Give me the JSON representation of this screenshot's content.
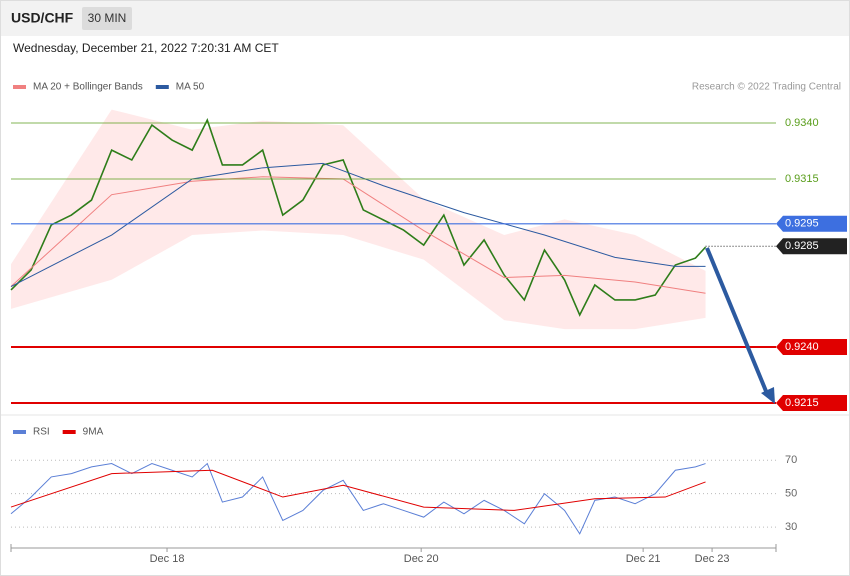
{
  "header": {
    "symbol": "USD/CHF",
    "interval": "30 MIN",
    "date": "Wednesday, December 21, 2022 7:20:31 AM CET",
    "credit": "Research © 2022 Trading Central"
  },
  "chart_data": [
    {
      "type": "line",
      "xlim": [
        0,
        152
      ],
      "xticks": [
        {
          "value": 31,
          "label": "Dec 18"
        },
        {
          "value": 81.5,
          "label": "Dec 20"
        },
        {
          "value": 125.6,
          "label": "Dec 21"
        },
        {
          "value": 139.3,
          "label": "Dec 23"
        }
      ],
      "ylim": [
        0.921,
        0.9368
      ],
      "levels": [
        {
          "value": 0.934,
          "label": "0.9340",
          "color": "#5a9e1c",
          "style": "thin"
        },
        {
          "value": 0.9315,
          "label": "0.9315",
          "color": "#5a9e1c",
          "style": "thin"
        },
        {
          "value": 0.9295,
          "label": "0.9295",
          "color": "#3d6fe0",
          "style": "tag"
        },
        {
          "value": 0.9285,
          "label": "0.9285",
          "color": "#222222",
          "style": "current"
        },
        {
          "value": 0.924,
          "label": "0.9240",
          "color": "#e00000",
          "style": "tag"
        },
        {
          "value": 0.9215,
          "label": "0.9215",
          "color": "#e00000",
          "style": "tag"
        }
      ],
      "series": [
        {
          "color": "#2e7d1a",
          "x": [
            0,
            4,
            8,
            12,
            16,
            20,
            24,
            28,
            32,
            36,
            39,
            42,
            46,
            50,
            54,
            58,
            62,
            66,
            70,
            74,
            78,
            82,
            86,
            90,
            94,
            98,
            102,
            106,
            110,
            113,
            116,
            120,
            124,
            128,
            132,
            136,
            138
          ],
          "values": [
            0.92655,
            0.92744,
            0.92945,
            0.92989,
            0.93056,
            0.93279,
            0.93235,
            0.93391,
            0.93324,
            0.93279,
            0.93413,
            0.93213,
            0.93213,
            0.93279,
            0.92989,
            0.93056,
            0.93213,
            0.93235,
            0.93012,
            0.92967,
            0.92922,
            0.92855,
            0.92989,
            0.92766,
            0.92878,
            0.92721,
            0.9261,
            0.92833,
            0.92699,
            0.92543,
            0.92677,
            0.9261,
            0.9261,
            0.92632,
            0.92766,
            0.92797,
            0.92846
          ]
        },
        {
          "name": "MA 20 + Bollinger Bands",
          "color": "#f08080",
          "x": [
            0,
            20,
            36,
            50,
            66,
            82,
            98,
            110,
            124,
            138
          ],
          "values": [
            0.9267,
            0.9308,
            0.9314,
            0.9316,
            0.9315,
            0.9292,
            0.9271,
            0.9272,
            0.9269,
            0.9264
          ],
          "band_upper": [
            0.9277,
            0.9346,
            0.9337,
            0.9341,
            0.9339,
            0.9306,
            0.929,
            0.9297,
            0.929,
            0.9274
          ],
          "band_lower": [
            0.9257,
            0.927,
            0.929,
            0.9292,
            0.929,
            0.9279,
            0.9252,
            0.9248,
            0.9248,
            0.9253
          ]
        },
        {
          "name": "MA 50",
          "color": "#2c5aa0",
          "x": [
            0,
            20,
            36,
            50,
            62,
            74,
            90,
            106,
            120,
            132,
            138
          ],
          "values": [
            0.9267,
            0.929,
            0.9315,
            0.932,
            0.9322,
            0.9312,
            0.93,
            0.929,
            0.928,
            0.9276,
            0.9276
          ]
        }
      ]
    },
    {
      "type": "line",
      "xlim": [
        0,
        152
      ],
      "ylim": [
        19,
        94
      ],
      "yticks": [
        30,
        50,
        70
      ],
      "series": [
        {
          "name": "RSI",
          "color": "#5b7fd6",
          "x": [
            0,
            4,
            8,
            12,
            16,
            20,
            24,
            28,
            32,
            36,
            39,
            42,
            46,
            50,
            54,
            58,
            62,
            66,
            70,
            74,
            78,
            82,
            86,
            90,
            94,
            98,
            102,
            106,
            110,
            113,
            116,
            120,
            124,
            128,
            132,
            136,
            138
          ],
          "values": [
            38,
            48,
            60,
            62,
            66,
            68,
            62,
            68,
            64,
            60,
            68,
            45,
            48,
            60,
            34,
            40,
            52,
            58,
            40,
            44,
            40,
            36,
            45,
            38,
            46,
            40,
            32,
            50,
            40,
            26,
            46,
            48,
            44,
            50,
            64,
            66,
            68
          ]
        },
        {
          "name": "9MA",
          "color": "#e00000",
          "x": [
            0,
            20,
            40,
            54,
            66,
            82,
            100,
            116,
            130,
            138
          ],
          "values": [
            42,
            62,
            64,
            48,
            55,
            42,
            40,
            47,
            48,
            57
          ]
        }
      ]
    }
  ]
}
